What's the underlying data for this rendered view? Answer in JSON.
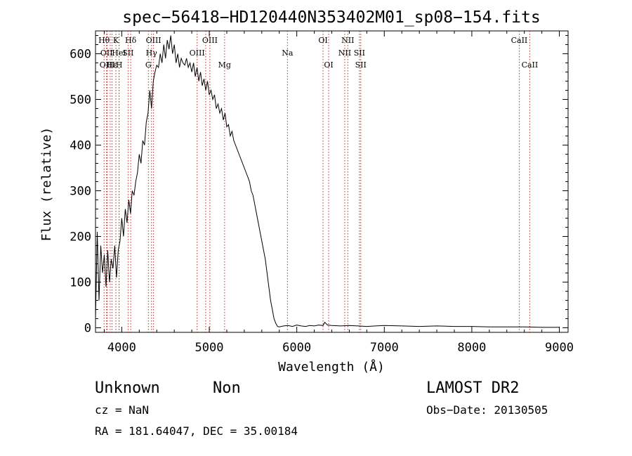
{
  "chart_data": {
    "type": "line",
    "title": "spec−56418−HD120440N353402M01_sp08−154.fits",
    "xlabel": "Wavelength (Å)",
    "ylabel": "Flux (relative)",
    "xlim": [
      3700,
      9100
    ],
    "ylim": [
      -10,
      650
    ],
    "x_ticks": [
      4000,
      5000,
      6000,
      7000,
      8000,
      9000
    ],
    "x_tick_labels": [
      "4000",
      "5000",
      "6000",
      "7000",
      "8000",
      "9000"
    ],
    "y_ticks": [
      0,
      100,
      200,
      300,
      400,
      500,
      600
    ],
    "y_tick_labels": [
      "0",
      "100",
      "200",
      "300",
      "400",
      "500",
      "600"
    ],
    "series": [
      {
        "x": [
          3700,
          3720,
          3740,
          3760,
          3780,
          3800,
          3820,
          3840,
          3860,
          3880,
          3900,
          3920,
          3940,
          3960,
          3980,
          4000,
          4020,
          4040,
          4060,
          4080,
          4100,
          4120,
          4140,
          4160,
          4180,
          4200,
          4220,
          4240,
          4260,
          4280,
          4300,
          4320,
          4340,
          4360,
          4380,
          4400,
          4420,
          4440,
          4460,
          4480,
          4500,
          4520,
          4540,
          4560,
          4580,
          4600,
          4620,
          4640,
          4660,
          4680,
          4700,
          4720,
          4740,
          4760,
          4780,
          4800,
          4820,
          4840,
          4860,
          4880,
          4900,
          4920,
          4940,
          4960,
          4980,
          5000,
          5020,
          5040,
          5060,
          5080,
          5100,
          5120,
          5140,
          5160,
          5180,
          5200,
          5220,
          5240,
          5260,
          5280,
          5300,
          5320,
          5340,
          5360,
          5380,
          5400,
          5420,
          5440,
          5460,
          5480,
          5500,
          5520,
          5540,
          5560,
          5580,
          5600,
          5620,
          5640,
          5660,
          5680,
          5700,
          5720,
          5740,
          5760,
          5780,
          5800,
          5850,
          5900,
          5950,
          6000,
          6050,
          6100,
          6150,
          6200,
          6250,
          6300,
          6320,
          6350,
          6400,
          6500,
          6600,
          6700,
          6800,
          6900,
          7000,
          7200,
          7400,
          7600,
          7800,
          8000,
          8200,
          8400,
          8600,
          8800,
          9000
        ],
        "y": [
          20,
          210,
          60,
          180,
          120,
          160,
          90,
          170,
          100,
          150,
          130,
          180,
          110,
          170,
          190,
          240,
          200,
          260,
          230,
          280,
          250,
          300,
          290,
          320,
          340,
          380,
          360,
          410,
          400,
          450,
          470,
          520,
          480,
          540,
          560,
          575,
          570,
          600,
          580,
          620,
          590,
          630,
          610,
          640,
          600,
          620,
          580,
          600,
          570,
          590,
          580,
          575,
          590,
          570,
          580,
          560,
          580,
          550,
          570,
          540,
          560,
          530,
          545,
          520,
          540,
          510,
          520,
          500,
          510,
          480,
          490,
          470,
          480,
          455,
          470,
          440,
          445,
          420,
          430,
          410,
          400,
          390,
          380,
          370,
          360,
          350,
          340,
          330,
          320,
          300,
          290,
          270,
          250,
          230,
          210,
          190,
          170,
          150,
          120,
          90,
          60,
          40,
          20,
          10,
          3,
          2,
          4,
          5,
          3,
          6,
          4,
          3,
          5,
          4,
          6,
          5,
          12,
          6,
          5,
          4,
          5,
          4,
          3,
          4,
          5,
          4,
          3,
          4,
          3,
          3,
          2,
          2,
          2,
          1,
          1
        ]
      }
    ],
    "line_labels": [
      {
        "x": 3798,
        "label": "Hθ",
        "row": 1
      },
      {
        "x": 3826,
        "label": "OII",
        "row": 2
      },
      {
        "x": 3835,
        "label": "OIII",
        "row": 3
      },
      {
        "x": 3868,
        "label": "",
        "row": 3
      },
      {
        "x": 3889,
        "label": "Hε",
        "row": 3
      },
      {
        "x": 3933,
        "label": "K",
        "row": 1
      },
      {
        "x": 3969,
        "label": "HeI",
        "row": 2
      },
      {
        "x": 3970,
        "label": "H",
        "row": 3
      },
      {
        "x": 4072,
        "label": "SII",
        "row": 2
      },
      {
        "x": 4102,
        "label": "Hδ",
        "row": 1
      },
      {
        "x": 4304,
        "label": "G",
        "row": 3
      },
      {
        "x": 4340,
        "label": "Hγ",
        "row": 2
      },
      {
        "x": 4363,
        "label": "OIII",
        "row": 1
      },
      {
        "x": 4861,
        "label": "OIII",
        "row": 2
      },
      {
        "x": 4959,
        "label": "",
        "row": 3
      },
      {
        "x": 5007,
        "label": "OIII",
        "row": 1
      },
      {
        "x": 5175,
        "label": "Mg",
        "row": 3
      },
      {
        "x": 5893,
        "label": "Na",
        "row": 2
      },
      {
        "x": 6300,
        "label": "OI",
        "row": 1
      },
      {
        "x": 6364,
        "label": "OI",
        "row": 3
      },
      {
        "x": 6548,
        "label": "NII",
        "row": 2
      },
      {
        "x": 6583,
        "label": "NII",
        "row": 1
      },
      {
        "x": 6716,
        "label": "SII",
        "row": 2
      },
      {
        "x": 6731,
        "label": "SII",
        "row": 3
      },
      {
        "x": 8542,
        "label": "CaII",
        "row": 1
      },
      {
        "x": 8662,
        "label": "CaII",
        "row": 3
      }
    ],
    "grid": false,
    "legend": "none"
  },
  "info": {
    "object_class": "Unknown",
    "subclass": "Non",
    "survey": "LAMOST DR2",
    "cz": "cz = NaN",
    "obs_date": "Obs−Date: 20130505",
    "coords": "RA = 181.64047, DEC =  35.00184"
  }
}
